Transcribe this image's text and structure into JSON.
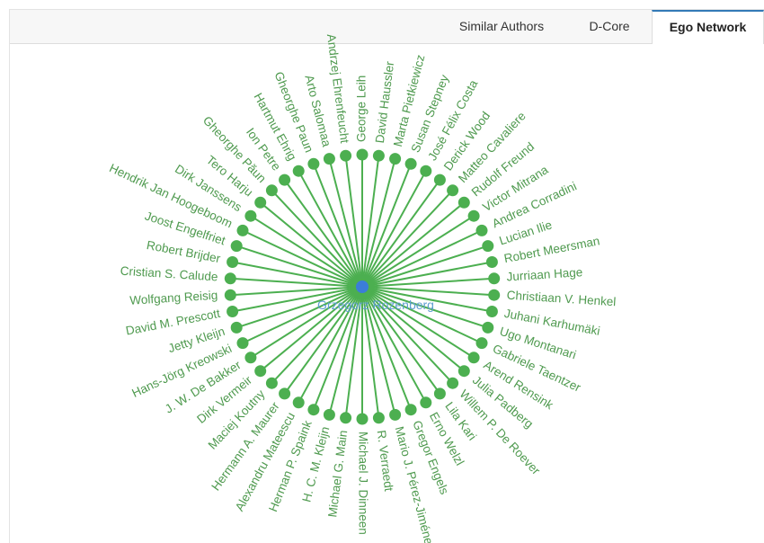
{
  "tabs": [
    {
      "label": "Similar Authors",
      "active": false
    },
    {
      "label": "D-Core",
      "active": false
    },
    {
      "label": "Ego Network",
      "active": true
    }
  ],
  "colors": {
    "node": "#4caf50",
    "edge": "#4caf50",
    "center": "#3b7dd8",
    "label": "#4f9a4f",
    "center_label": "#5f9fd0"
  },
  "network": {
    "center": "Grzegorz Rozenberg",
    "neighbors": [
      "George Leih",
      "David Haussler",
      "Marta Pietkiewicz",
      "Susan Stepney",
      "José Félix Costa",
      "Derick Wood",
      "Matteo Cavaliere",
      "Rudolf Freund",
      "Victor Mitrana",
      "Andrea Corradini",
      "Lucian Ilie",
      "Robert Meersman",
      "Jurriaan Hage",
      "Christiaan V. Henkel",
      "Juhani Karhumäki",
      "Ugo Montanari",
      "Gabriele Taentzer",
      "Arend Rensink",
      "Julia Padberg",
      "Willem P. De Roever",
      "Lila Kari",
      "Erno Welzl",
      "Gregor Engels",
      "Mario J. Pérez-Jiménez",
      "R. Verraedt",
      "Michael J. Dinneen",
      "Michael G. Main",
      "H. C. M. Kleijn",
      "Herman P. Spaink",
      "Alexandru Mateescu",
      "Hermann A. Maurer",
      "Maciej Koutny",
      "Dirk Vermeir",
      "J. W. De Bakker",
      "Hans-Jörg Kreowski",
      "Jetty Kleijn",
      "David M. Prescott",
      "Wolfgang Reisig",
      "Cristian S. Calude",
      "Robert Brijder",
      "Joost Engelfriet",
      "Hendrik Jan Hoogeboom",
      "Dirk Janssens",
      "Tero Harju",
      "Gheorghe Păun",
      "Ion Petre",
      "Hartmut Ehrig",
      "Gheorghe Paun",
      "Arto Salomaa",
      "Andrzej Ehrenfeucht"
    ]
  }
}
